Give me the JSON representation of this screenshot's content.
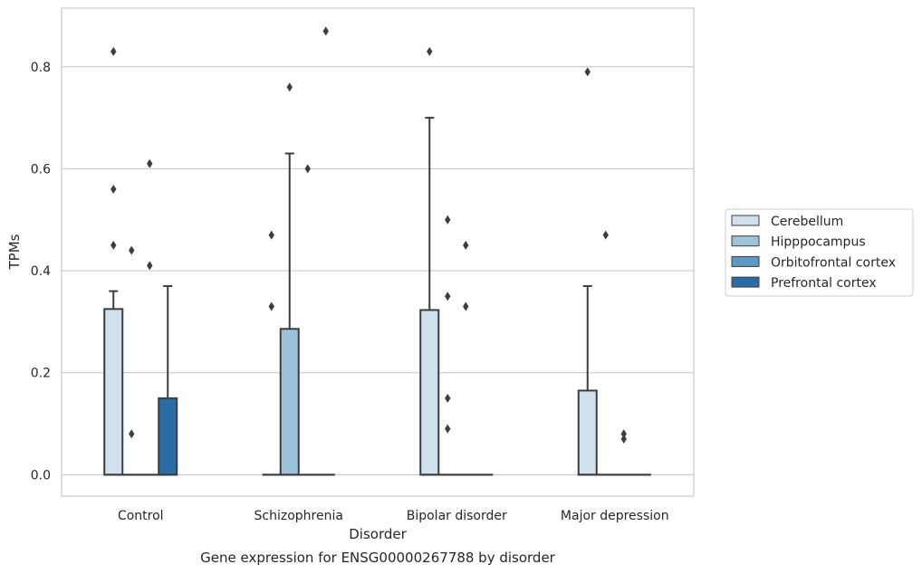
{
  "chart_data": {
    "type": "box",
    "title": "",
    "caption": "Gene expression for ENSG00000267788 by disorder",
    "xlabel": "Disorder",
    "ylabel": "TPMs",
    "categories": [
      "Control",
      "Schizophrenia",
      "Bipolar disorder",
      "Major depression"
    ],
    "ylim": [
      -0.042,
      0.915
    ],
    "yticks": [
      0.0,
      0.2,
      0.4,
      0.6,
      0.8
    ],
    "ytick_labels": [
      "0.0",
      "0.2",
      "0.4",
      "0.6",
      "0.8"
    ],
    "grid": "horizontal",
    "legend_position": "right",
    "series": [
      {
        "name": "Cerebellum",
        "color": "#d1e0ef",
        "boxes": [
          {
            "q1": 0.0,
            "median": 0.0,
            "q3": 0.325,
            "whislo": 0.0,
            "whishi": 0.36,
            "fliers": [
              0.83,
              0.56,
              0.45
            ]
          },
          {
            "q1": 0.0,
            "median": 0.0,
            "q3": 0.0,
            "whislo": 0.0,
            "whishi": 0.0,
            "fliers": [
              0.47,
              0.33
            ]
          },
          {
            "q1": 0.0,
            "median": 0.0,
            "q3": 0.323,
            "whislo": 0.0,
            "whishi": 0.7,
            "fliers": [
              0.83
            ]
          },
          {
            "q1": 0.0,
            "median": 0.0,
            "q3": 0.165,
            "whislo": 0.0,
            "whishi": 0.37,
            "fliers": [
              0.79
            ]
          }
        ]
      },
      {
        "name": "Hipppocampus",
        "color": "#9cc3d9",
        "boxes": [
          {
            "q1": 0.0,
            "median": 0.0,
            "q3": 0.0,
            "whislo": 0.0,
            "whishi": 0.0,
            "fliers": [
              0.44,
              0.08
            ]
          },
          {
            "q1": 0.0,
            "median": 0.0,
            "q3": 0.286,
            "whislo": 0.0,
            "whishi": 0.63,
            "fliers": [
              0.76
            ]
          },
          {
            "q1": 0.0,
            "median": 0.0,
            "q3": 0.0,
            "whislo": 0.0,
            "whishi": 0.0,
            "fliers": [
              0.5,
              0.35,
              0.15,
              0.09
            ]
          },
          {
            "q1": 0.0,
            "median": 0.0,
            "q3": 0.0,
            "whislo": 0.0,
            "whishi": 0.0,
            "fliers": [
              0.47
            ]
          }
        ]
      },
      {
        "name": "Orbitofrontal cortex",
        "color": "#5d99c2",
        "boxes": [
          {
            "q1": 0.0,
            "median": 0.0,
            "q3": 0.0,
            "whislo": 0.0,
            "whishi": 0.0,
            "fliers": [
              0.61,
              0.41
            ]
          },
          {
            "q1": 0.0,
            "median": 0.0,
            "q3": 0.0,
            "whislo": 0.0,
            "whishi": 0.0,
            "fliers": [
              0.6
            ]
          },
          {
            "q1": 0.0,
            "median": 0.0,
            "q3": 0.0,
            "whislo": 0.0,
            "whishi": 0.0,
            "fliers": [
              0.45,
              0.33
            ]
          },
          {
            "q1": 0.0,
            "median": 0.0,
            "q3": 0.0,
            "whislo": 0.0,
            "whishi": 0.0,
            "fliers": [
              0.08,
              0.07
            ]
          }
        ]
      },
      {
        "name": "Prefrontal cortex",
        "color": "#2b6ca7",
        "boxes": [
          {
            "q1": 0.0,
            "median": 0.0,
            "q3": 0.15,
            "whislo": 0.0,
            "whishi": 0.37,
            "fliers": []
          },
          {
            "q1": 0.0,
            "median": 0.0,
            "q3": 0.0,
            "whislo": 0.0,
            "whishi": 0.0,
            "fliers": [
              0.87
            ]
          },
          {
            "q1": 0.0,
            "median": 0.0,
            "q3": 0.0,
            "whislo": 0.0,
            "whishi": 0.0,
            "fliers": []
          },
          {
            "q1": 0.0,
            "median": 0.0,
            "q3": 0.0,
            "whislo": 0.0,
            "whishi": 0.0,
            "fliers": []
          }
        ]
      }
    ]
  }
}
